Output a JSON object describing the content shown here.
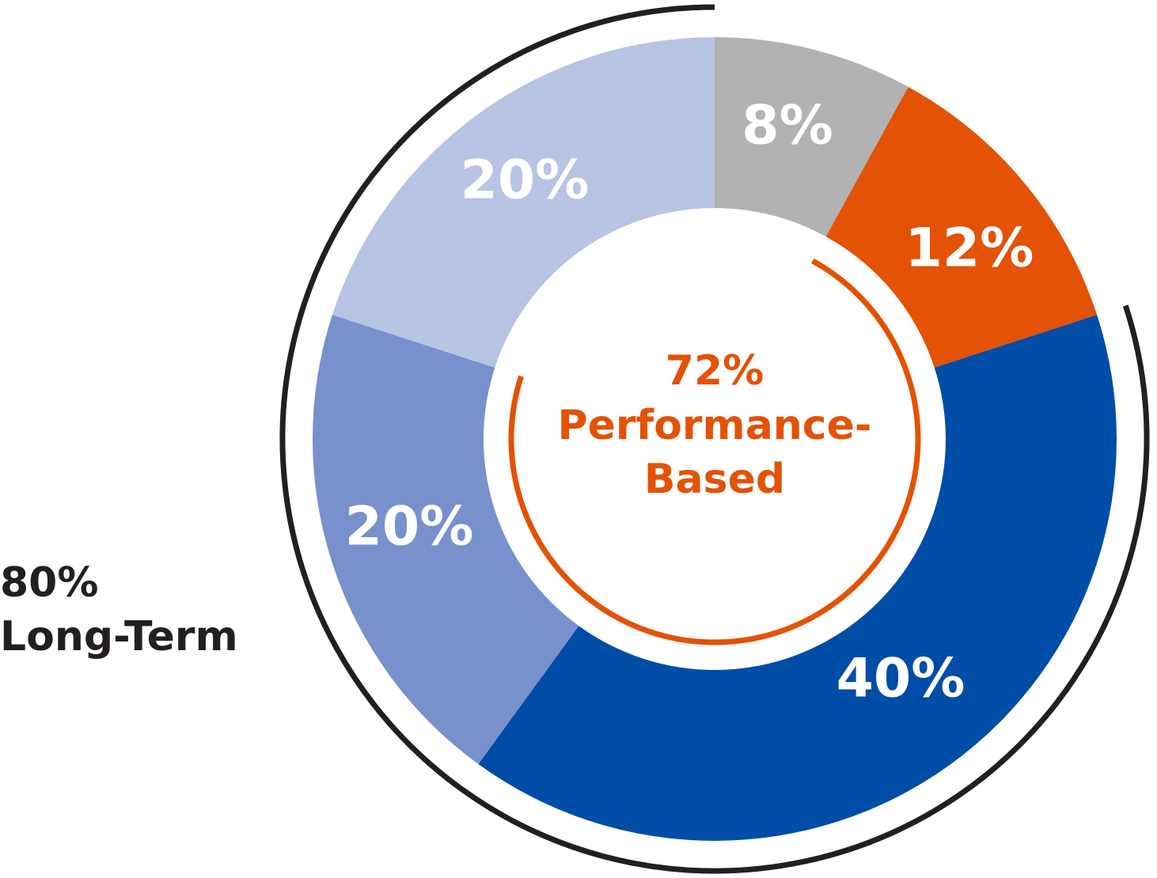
{
  "chart_data": {
    "type": "donut",
    "categories": [
      null,
      null,
      null,
      null,
      null
    ],
    "values": [
      8,
      12,
      40,
      20,
      20
    ],
    "value_labels": [
      "8%",
      "12%",
      "40%",
      "20%",
      "20%"
    ],
    "colors": [
      "#b2b2b2",
      "#e35205",
      "#004da8",
      "#7890cc",
      "#b8c4e4"
    ],
    "annotations": [
      {
        "label": "72%",
        "value": 72,
        "text": [
          "Performance-",
          "Based"
        ],
        "color": "#e35205"
      },
      {
        "label": "80%",
        "value": 80,
        "text": [
          "Long-Term"
        ],
        "color": "#231f20"
      }
    ]
  }
}
